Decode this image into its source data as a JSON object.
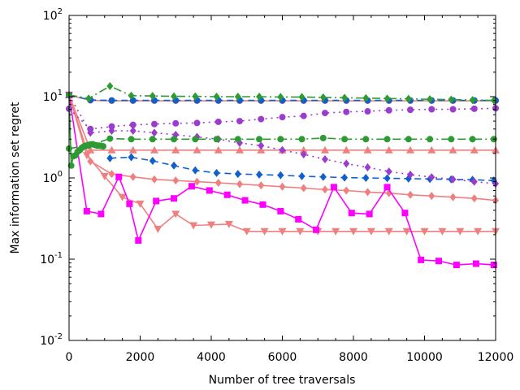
{
  "chart_data": {
    "type": "line",
    "xlabel": "Number of tree traversals",
    "ylabel": "Max information set regret",
    "xlim": [
      0,
      12000
    ],
    "ylim": [
      0.01,
      100
    ],
    "yscale": "log",
    "grid": false,
    "x_ticks": [
      {
        "value": 0,
        "label": "0"
      },
      {
        "value": 2000,
        "label": "2000"
      },
      {
        "value": 4000,
        "label": "4000"
      },
      {
        "value": 6000,
        "label": "6000"
      },
      {
        "value": 8000,
        "label": "8000"
      },
      {
        "value": 10000,
        "label": "10000"
      },
      {
        "value": 12000,
        "label": "12000"
      }
    ],
    "y_ticks": [
      {
        "value": 0.01,
        "base": "10",
        "exp": "-2"
      },
      {
        "value": 0.1,
        "base": "10",
        "exp": "-1"
      },
      {
        "value": 1,
        "base": "10",
        "exp": "0"
      },
      {
        "value": 10,
        "base": "10",
        "exp": "1"
      },
      {
        "value": 100,
        "base": "10",
        "exp": "2"
      }
    ],
    "series": [
      {
        "color": "#f08080",
        "dash": "",
        "marker": "circle",
        "x": [
          0,
          600,
          1200,
          1800,
          2400,
          3000,
          3600,
          4200,
          4800,
          5400,
          6000,
          6600,
          7200,
          7800,
          8400,
          9000,
          9600,
          10200,
          10800,
          11400,
          12000
        ],
        "y": [
          10.5,
          9.0,
          8.9,
          8.9,
          8.9,
          8.9,
          8.9,
          8.9,
          8.9,
          8.9,
          8.9,
          8.9,
          8.9,
          8.9,
          8.9,
          8.9,
          8.9,
          8.9,
          8.9,
          8.9,
          8.9
        ]
      },
      {
        "color": "#f08080",
        "dash": "",
        "marker": "triangle-up",
        "x": [
          0,
          600,
          1200,
          1800,
          2400,
          3000,
          3600,
          4200,
          4800,
          5400,
          6000,
          6600,
          7200,
          7800,
          8400,
          9000,
          9600,
          10200,
          10800,
          11400,
          12000
        ],
        "y": [
          10.5,
          2.2,
          2.2,
          2.2,
          2.2,
          2.2,
          2.2,
          2.2,
          2.2,
          2.2,
          2.2,
          2.2,
          2.2,
          2.2,
          2.2,
          2.2,
          2.2,
          2.2,
          2.2,
          2.2,
          2.2
        ]
      },
      {
        "color": "#f08080",
        "dash": "",
        "marker": "diamond",
        "x": [
          0,
          600,
          1200,
          1800,
          2400,
          3000,
          3600,
          4200,
          4800,
          5400,
          6000,
          6600,
          7200,
          7800,
          8400,
          9000,
          9600,
          10200,
          10800,
          11400,
          12000
        ],
        "y": [
          10.5,
          1.6,
          1.12,
          1.03,
          0.96,
          0.93,
          0.9,
          0.87,
          0.84,
          0.81,
          0.78,
          0.75,
          0.72,
          0.7,
          0.67,
          0.65,
          0.62,
          0.6,
          0.58,
          0.56,
          0.53
        ]
      },
      {
        "color": "#f08080",
        "dash": "",
        "marker": "triangle-down",
        "x": [
          0,
          500,
          1000,
          1500,
          2000,
          2500,
          3000,
          3500,
          4000,
          4500,
          5000,
          5500,
          6000,
          6500,
          7000,
          7500,
          8000,
          8500,
          9000,
          9500,
          10000,
          10500,
          11000,
          11500,
          12000
        ],
        "y": [
          10.5,
          1.9,
          1.05,
          0.58,
          0.48,
          0.235,
          0.36,
          0.26,
          0.265,
          0.27,
          0.22,
          0.22,
          0.22,
          0.22,
          0.22,
          0.22,
          0.22,
          0.22,
          0.22,
          0.22,
          0.22,
          0.22,
          0.22,
          0.22,
          0.22
        ]
      },
      {
        "color": "#ff00ff",
        "dash": "",
        "marker": "square",
        "x": [
          0,
          500,
          900,
          1400,
          1700,
          1950,
          2450,
          2950,
          3450,
          3950,
          4450,
          4950,
          5450,
          5950,
          6450,
          6950,
          7450,
          7950,
          8450,
          8950,
          9450,
          9900,
          10400,
          10900,
          11450,
          11950
        ],
        "y": [
          10.5,
          0.39,
          0.36,
          1.03,
          0.48,
          0.17,
          0.52,
          0.56,
          0.79,
          0.7,
          0.62,
          0.53,
          0.47,
          0.39,
          0.31,
          0.23,
          0.77,
          0.37,
          0.36,
          0.77,
          0.37,
          0.098,
          0.095,
          0.085,
          0.088,
          0.085
        ]
      },
      {
        "color": "#1060cc",
        "dash": "8,5",
        "marker": "circle",
        "x": [
          0,
          600,
          1200,
          1800,
          2400,
          3000,
          3600,
          4200,
          4800,
          5400,
          6000,
          6600,
          7200,
          7800,
          8400,
          9000,
          9600,
          10200,
          10800,
          11400,
          12000
        ],
        "y": [
          10.5,
          9.1,
          9.0,
          9.0,
          9.0,
          9.0,
          9.0,
          9.0,
          9.0,
          9.0,
          9.0,
          9.0,
          9.0,
          9.0,
          9.0,
          9.0,
          9.0,
          9.0,
          9.0,
          9.0,
          9.0
        ]
      },
      {
        "color": "#1060cc",
        "dash": "8,5",
        "marker": "diamond",
        "x": [
          1150,
          1750,
          2350,
          2950,
          3550,
          4150,
          4750,
          5350,
          5950,
          6550,
          7150,
          7750,
          8350,
          8950,
          9550,
          10150,
          10750,
          11350,
          11950
        ],
        "y": [
          1.75,
          1.8,
          1.62,
          1.42,
          1.24,
          1.15,
          1.12,
          1.1,
          1.08,
          1.05,
          1.03,
          1.01,
          1.0,
          0.99,
          0.98,
          0.97,
          0.96,
          0.95,
          0.93
        ]
      },
      {
        "color": "#9a3ccf",
        "dash": "2,5",
        "marker": "circle",
        "x": [
          0,
          600,
          1200,
          1800,
          2400,
          3000,
          3600,
          4200,
          4800,
          5400,
          6000,
          6600,
          7200,
          7800,
          8400,
          9000,
          9600,
          10200,
          10800,
          11400,
          12000
        ],
        "y": [
          7.1,
          4.0,
          4.3,
          4.5,
          4.6,
          4.7,
          4.75,
          4.9,
          5.0,
          5.3,
          5.6,
          5.8,
          6.3,
          6.5,
          6.6,
          6.8,
          6.9,
          7.0,
          7.0,
          7.1,
          7.2
        ]
      },
      {
        "color": "#9a3ccf",
        "dash": "2,5",
        "marker": "diamond",
        "x": [
          0,
          600,
          1200,
          1800,
          2400,
          3000,
          3600,
          4200,
          4800,
          5400,
          6000,
          6600,
          7200,
          7800,
          8400,
          9000,
          9600,
          10200,
          10800,
          11400,
          12000
        ],
        "y": [
          10.5,
          3.6,
          3.8,
          3.8,
          3.6,
          3.4,
          3.2,
          3.0,
          2.7,
          2.5,
          2.2,
          1.95,
          1.7,
          1.5,
          1.35,
          1.2,
          1.1,
          1.02,
          0.96,
          0.9,
          0.85
        ]
      },
      {
        "color": "#2e9a33",
        "dash": "10,4,2,4",
        "marker": "diamond",
        "x": [
          0,
          550,
          1150,
          1750,
          2350,
          2950,
          3550,
          4150,
          4750,
          5350,
          5950,
          6550,
          7150,
          7750,
          8350,
          8950,
          9550,
          10150,
          10750,
          11350,
          11950
        ],
        "y": [
          10.5,
          9.5,
          13.5,
          10.3,
          10.2,
          10.1,
          10.1,
          10.0,
          10.0,
          10.0,
          9.9,
          9.9,
          9.8,
          9.7,
          9.6,
          9.5,
          9.4,
          9.3,
          9.2,
          9.1,
          9.0
        ]
      },
      {
        "color": "#2e9a33",
        "dash": "10,4,2,4",
        "marker": "circle",
        "x": [
          0,
          550,
          1150,
          1750,
          2350,
          2950,
          3550,
          4150,
          4750,
          5350,
          5950,
          6550,
          7150,
          7750,
          8350,
          8950,
          9550,
          10150,
          10750,
          11350,
          11950
        ],
        "y": [
          2.3,
          2.5,
          3.05,
          3.0,
          3.0,
          3.0,
          3.0,
          3.0,
          3.0,
          3.0,
          3.0,
          3.0,
          3.1,
          3.0,
          3.0,
          3.0,
          3.0,
          3.0,
          3.0,
          3.0,
          3.0
        ]
      },
      {
        "color": "#2e9a33",
        "dash": "",
        "marker": "circle",
        "x": [
          0,
          60,
          120,
          180,
          240,
          300,
          360,
          420,
          480,
          540,
          600,
          660,
          720,
          780,
          840,
          900,
          960
        ],
        "y": [
          10.5,
          1.42,
          1.85,
          1.9,
          2.1,
          2.2,
          2.35,
          2.45,
          2.5,
          2.55,
          2.58,
          2.6,
          2.55,
          2.5,
          2.5,
          2.48,
          2.45
        ]
      }
    ]
  }
}
